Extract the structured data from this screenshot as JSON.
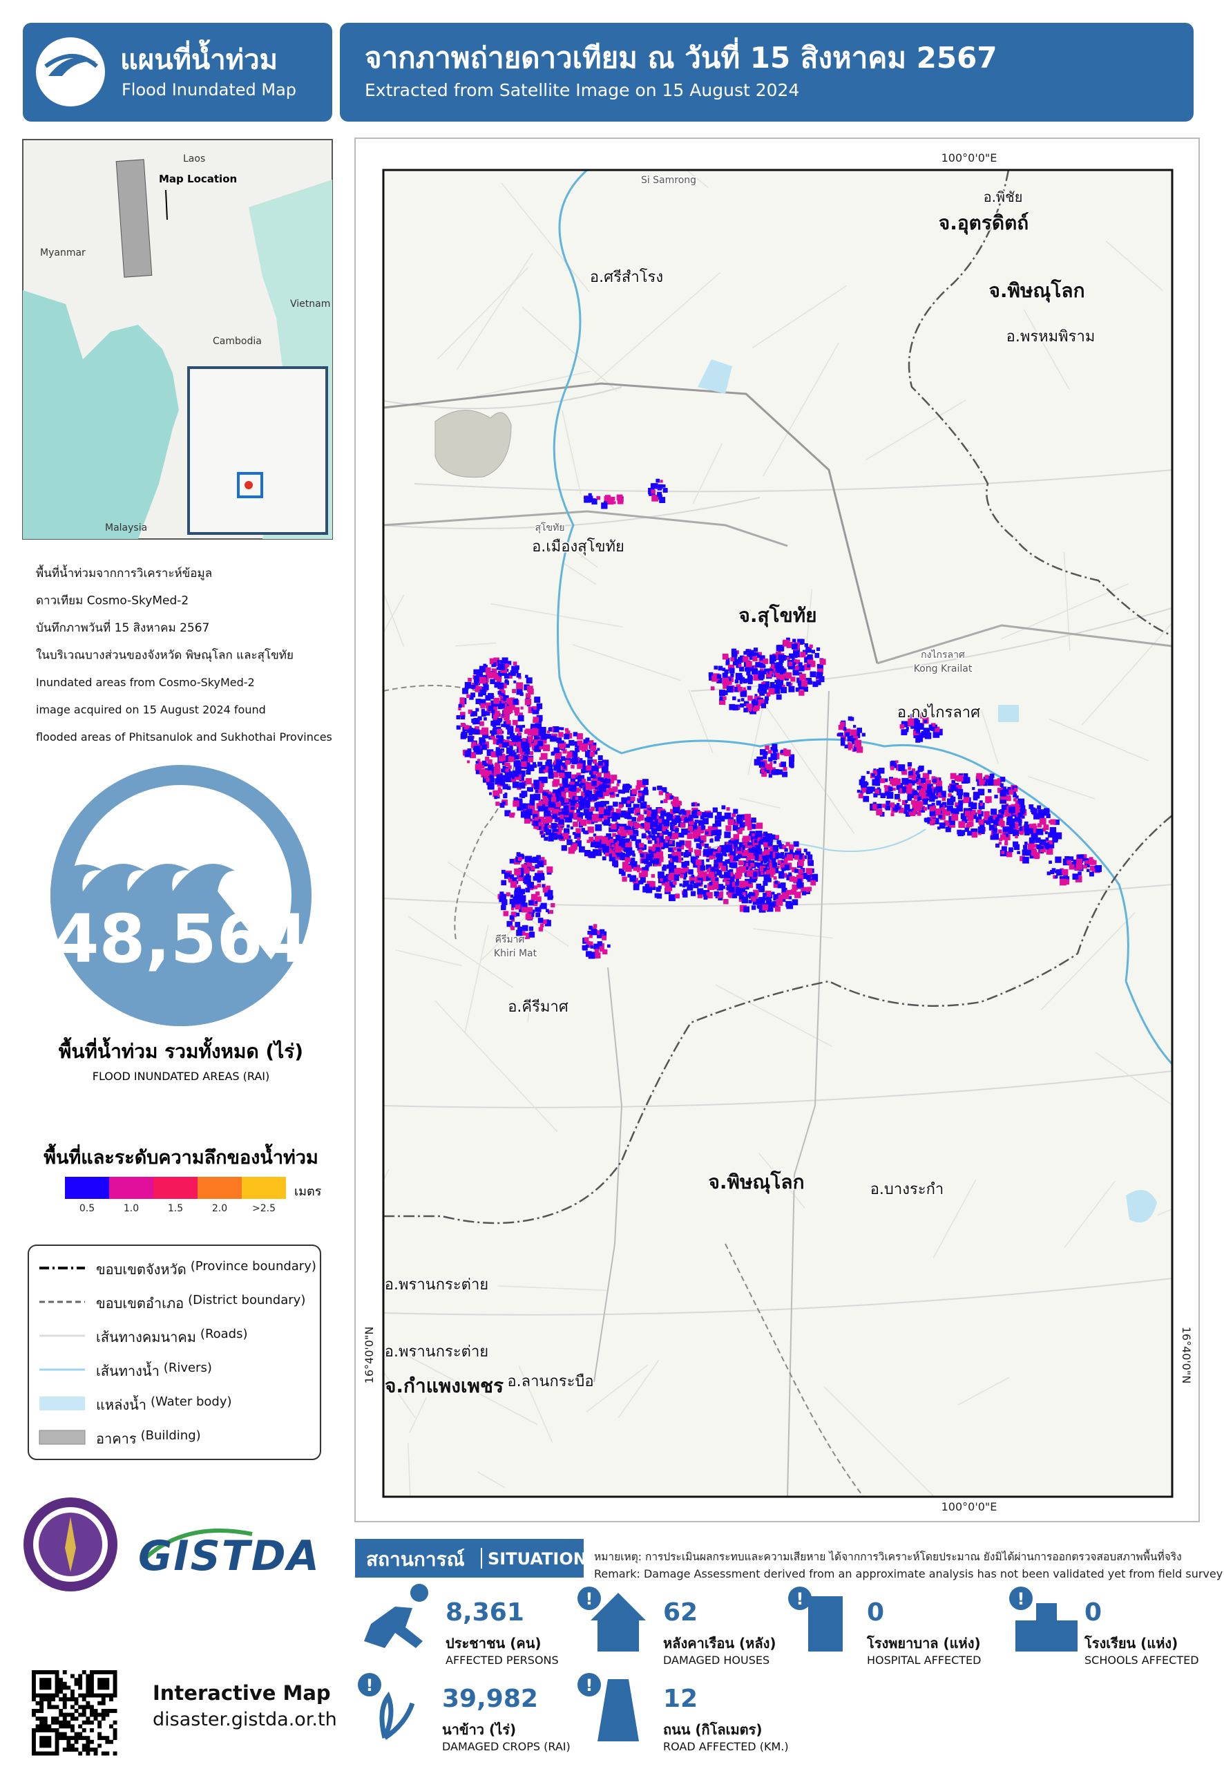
{
  "header": {
    "title_th": "แผนที่น้ำท่วม",
    "title_en": "Flood Inundated Map",
    "headline_th": "จากภาพถ่ายดาวเทียม ณ วันที่ 15 สิงหาคม 2567",
    "headline_en": "Extracted from Satellite Image on 15 August 2024"
  },
  "locator": {
    "labels": [
      "Laos",
      "Map Location",
      "Myanmar",
      "Vietnam",
      "Cambodia",
      "Malaysia"
    ]
  },
  "description": [
    "พื้นที่น้ำท่วมจากการวิเคราะห์ข้อมูล",
    "ดาวเทียม Cosmo-SkyMed-2",
    "บันทึกภาพวันที่ 15 สิงหาคม 2567",
    "ในบริเวณบางส่วนของจังหวัด พิษณุโลก และสุโขทัย",
    "Inundated areas  from Cosmo-SkyMed-2",
    "image acquired on 15 August 2024 found",
    "flooded areas of Phitsanulok and Sukhothai Provinces"
  ],
  "total": {
    "value": "48,564",
    "label_th": "พื้นที่น้ำท่วม รวมทั้งหมด (ไร่)",
    "label_en": "FLOOD INUNDATED AREAS (RAI)"
  },
  "depth_legend": {
    "title": "พื้นที่และระดับความลึกของน้ำท่วม",
    "unit": "เมตร",
    "classes": [
      {
        "label": "0.5",
        "color": "#1a00ff"
      },
      {
        "label": "1.0",
        "color": "#e0109c"
      },
      {
        "label": "1.5",
        "color": "#f5185a"
      },
      {
        "label": "2.0",
        "color": "#fb7a21"
      },
      {
        "label": ">2.5",
        "color": "#fcc21b"
      }
    ]
  },
  "symbol_legend": [
    {
      "th": "ขอบเขตจังหวัด",
      "en": "(Province boundary)"
    },
    {
      "th": "ขอบเขตอำเภอ",
      "en": "(District boundary)"
    },
    {
      "th": "เส้นทางคมนาคม",
      "en": "(Roads)"
    },
    {
      "th": "เส้นทางน้ำ",
      "en": "(Rivers)"
    },
    {
      "th": "แหล่งน้ำ",
      "en": "(Water body)"
    },
    {
      "th": "อาคาร",
      "en": "(Building)"
    }
  ],
  "logo_text": "GISTDA",
  "interactive": {
    "title": "Interactive Map",
    "url": "disaster.gistda.or.th"
  },
  "map": {
    "coord_x": "100°0'0\"E",
    "coord_y": "16°40'0\"N",
    "labels": [
      "Si Samrong",
      "อ.พิชัย",
      "จ.อุตรดิตถ์",
      "อ.ศรีสำโรง",
      "จ.พิษณุโลก",
      "อ.พรหมพิราม",
      "สุโขทัย",
      "อ.เมืองสุโขทัย",
      "จ.สุโขทัย",
      "กงไกรลาศ",
      "Kong Krailat",
      "อ.กงไกรลาศ",
      "คีรีมาศ",
      "Khiri Mat",
      "อ.คีรีมาศ",
      "จ.พิษณุโลก",
      "อ.บางระกำ",
      "อ.พรานกระต่าย",
      "อ.พรานกระต่าย",
      "จ.กำแพงเพชร",
      "อ.ลานกระบือ"
    ]
  },
  "situation": {
    "title_th": "สถานการณ์",
    "title_en": "SITUATION",
    "remark_th": "หมายเหตุ: การประเมินผลกระทบและความเสียหาย ได้จากการวิเคราะห์โดยประมาณ ยังมิได้ผ่านการออกตรวจสอบสภาพพื้นที่จริง",
    "remark_en": "Remark: Damage Assessment derived from an approximate analysis has not been validated yet from field survey",
    "stats": [
      {
        "value": "8,361",
        "th": "ประชาชน (คน)",
        "en": "AFFECTED PERSONS"
      },
      {
        "value": "62",
        "th": "หลังคาเรือน (หลัง)",
        "en": "DAMAGED HOUSES"
      },
      {
        "value": "0",
        "th": "โรงพยาบาล (แห่ง)",
        "en": "HOSPITAL AFFECTED"
      },
      {
        "value": "0",
        "th": "โรงเรียน (แห่ง)",
        "en": "SCHOOLS AFFECTED"
      },
      {
        "value": "39,982",
        "th": "นาข้าว (ไร่)",
        "en": "DAMAGED CROPS (RAI)"
      },
      {
        "value": "12",
        "th": "ถนน (กิโลเมตร)",
        "en": "ROAD AFFECTED (KM.)"
      }
    ]
  }
}
